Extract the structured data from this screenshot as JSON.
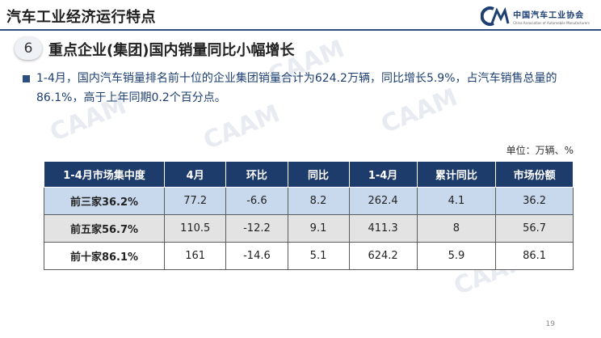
{
  "header": {
    "title": "汽车工业经济运行特点",
    "logo_name": "中国汽车工业协会",
    "logo_name_en": "China Association of Automobile Manufacturers"
  },
  "colors": {
    "accent": "#2c4f7f",
    "table_header": "#1e3c6b",
    "row_blue": "#c8d9ee",
    "row_gray": "#e3e3e3",
    "text_blue": "#1d3f72"
  },
  "section": {
    "number": "6",
    "title": "重点企业(集团)国内销量同比小幅增长"
  },
  "bullet": {
    "text": "1-4月，国内汽车销量排名前十位的企业集团销量合计为624.2万辆，同比增长5.9%，占汽车销售总量的86.1%，高于上年同期0.2个百分点。"
  },
  "unit_note": "单位：万辆、%",
  "table": {
    "headers": [
      "1-4月市场集中度",
      "4月",
      "环比",
      "同比",
      "1-4月",
      "累计同比",
      "市场份额"
    ],
    "rows": [
      [
        "前三家36.2%",
        "77.2",
        "-6.6",
        "8.2",
        "262.4",
        "4.1",
        "36.2"
      ],
      [
        "前五家56.7%",
        "110.5",
        "-12.2",
        "9.1",
        "411.3",
        "8",
        "56.7"
      ],
      [
        "前十家86.1%",
        "161",
        "-14.6",
        "5.1",
        "624.2",
        "5.9",
        "86.1"
      ]
    ]
  },
  "page_number": "19"
}
